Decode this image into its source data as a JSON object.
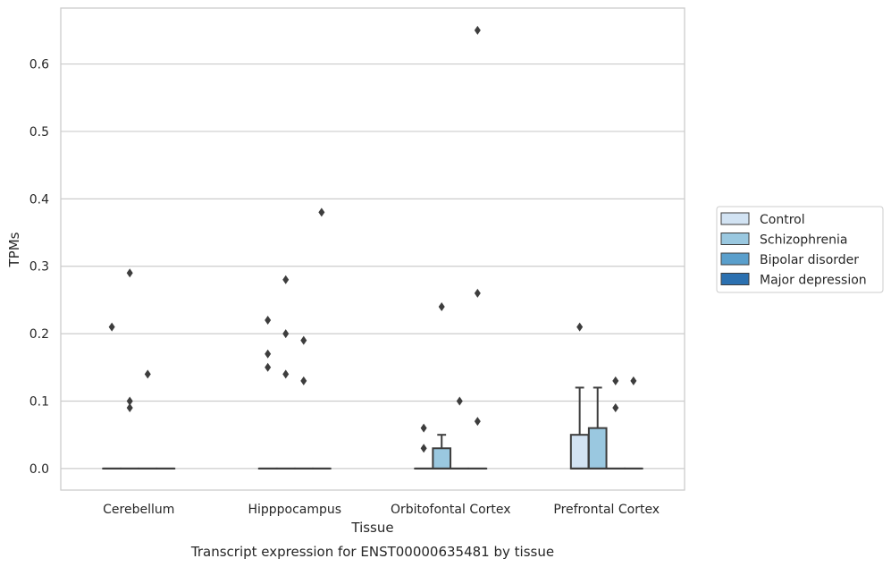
{
  "chart_data": {
    "type": "box",
    "caption": "Transcript expression for ENST00000635481 by tissue",
    "xlabel": "Tissue",
    "ylabel": "TPMs",
    "ylim": [
      -0.032,
      0.683
    ],
    "yticks": [
      0.0,
      0.1,
      0.2,
      0.3,
      0.4,
      0.5,
      0.6
    ],
    "ytick_labels": [
      "0.0",
      "0.1",
      "0.2",
      "0.3",
      "0.4",
      "0.5",
      "0.6"
    ],
    "grid": "horizontal",
    "legend_position": "right",
    "categories": [
      "Cerebellum",
      "Hipppocampus",
      "Orbitofontal Cortex",
      "Prefrontal Cortex"
    ],
    "series": [
      {
        "name": "Control",
        "color": "#d2e3f3",
        "boxes": [
          {
            "q1": 0,
            "median": 0,
            "q3": 0,
            "whisker_low": 0,
            "whisker_high": 0,
            "outliers": [
              0.21
            ]
          },
          {
            "q1": 0,
            "median": 0,
            "q3": 0,
            "whisker_low": 0,
            "whisker_high": 0,
            "outliers": [
              0.22,
              0.17,
              0.15
            ]
          },
          {
            "q1": 0,
            "median": 0,
            "q3": 0,
            "whisker_low": 0,
            "whisker_high": 0,
            "outliers": [
              0.06,
              0.03
            ]
          },
          {
            "q1": 0,
            "median": 0,
            "q3": 0.05,
            "whisker_low": 0,
            "whisker_high": 0.12,
            "outliers": [
              0.21
            ]
          }
        ]
      },
      {
        "name": "Schizophrenia",
        "color": "#9ac8e0",
        "boxes": [
          {
            "q1": 0,
            "median": 0,
            "q3": 0,
            "whisker_low": 0,
            "whisker_high": 0,
            "outliers": [
              0.29,
              0.1,
              0.09
            ]
          },
          {
            "q1": 0,
            "median": 0,
            "q3": 0,
            "whisker_low": 0,
            "whisker_high": 0,
            "outliers": [
              0.28,
              0.2,
              0.14
            ]
          },
          {
            "q1": 0,
            "median": 0,
            "q3": 0.03,
            "whisker_low": 0,
            "whisker_high": 0.05,
            "outliers": [
              0.24
            ]
          },
          {
            "q1": 0,
            "median": 0,
            "q3": 0.06,
            "whisker_low": 0,
            "whisker_high": 0.12,
            "outliers": []
          }
        ]
      },
      {
        "name": "Bipolar disorder",
        "color": "#5a9fcc",
        "boxes": [
          {
            "q1": 0,
            "median": 0,
            "q3": 0,
            "whisker_low": 0,
            "whisker_high": 0,
            "outliers": [
              0.14
            ]
          },
          {
            "q1": 0,
            "median": 0,
            "q3": 0,
            "whisker_low": 0,
            "whisker_high": 0,
            "outliers": [
              0.19,
              0.13
            ]
          },
          {
            "q1": 0,
            "median": 0,
            "q3": 0,
            "whisker_low": 0,
            "whisker_high": 0,
            "outliers": [
              0.1
            ]
          },
          {
            "q1": 0,
            "median": 0,
            "q3": 0,
            "whisker_low": 0,
            "whisker_high": 0,
            "outliers": [
              0.13,
              0.09
            ]
          }
        ]
      },
      {
        "name": "Major depression",
        "color": "#2b70b0",
        "boxes": [
          {
            "q1": 0,
            "median": 0,
            "q3": 0,
            "whisker_low": 0,
            "whisker_high": 0,
            "outliers": []
          },
          {
            "q1": 0,
            "median": 0,
            "q3": 0,
            "whisker_low": 0,
            "whisker_high": 0,
            "outliers": [
              0.38
            ]
          },
          {
            "q1": 0,
            "median": 0,
            "q3": 0,
            "whisker_low": 0,
            "whisker_high": 0,
            "outliers": [
              0.65,
              0.26,
              0.07
            ]
          },
          {
            "q1": 0,
            "median": 0,
            "q3": 0,
            "whisker_low": 0,
            "whisker_high": 0,
            "outliers": [
              0.13
            ]
          }
        ]
      }
    ]
  }
}
